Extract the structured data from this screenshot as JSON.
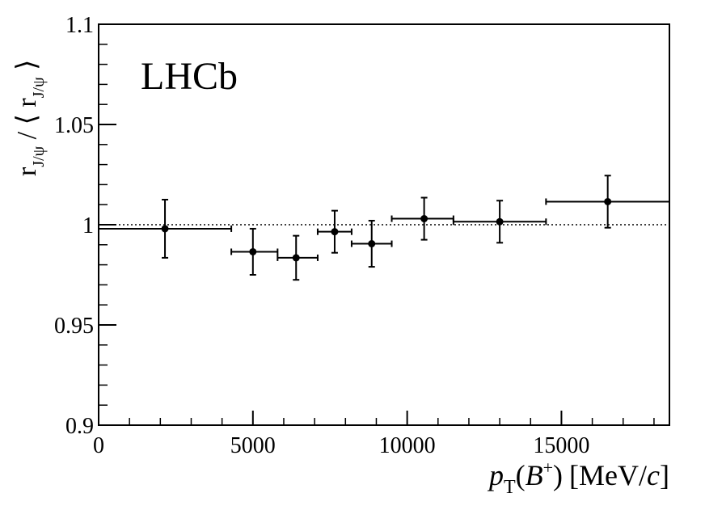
{
  "chart_data": {
    "type": "scatter",
    "title": "",
    "experiment_label": "LHCb",
    "xlabel": {
      "p": "p",
      "sub_T": "T",
      "paren_open": "(",
      "B": "B",
      "sup_plus": "+",
      "paren_close": ")",
      "unit_prefix": "[MeV/",
      "c": "c",
      "unit_suffix": "]"
    },
    "ylabel": {
      "r1": "r",
      "sub1": "J/ψ",
      "mid": " / ⟨ r",
      "sub2": "J/ψ",
      "close": " ⟩"
    },
    "xlim": [
      0,
      18500
    ],
    "ylim": [
      0.9,
      1.1
    ],
    "xticks": [
      {
        "value": 0,
        "label": "0"
      },
      {
        "value": 5000,
        "label": "5000"
      },
      {
        "value": 10000,
        "label": "10000"
      },
      {
        "value": 15000,
        "label": "15000"
      }
    ],
    "yticks": [
      {
        "value": 0.9,
        "label": "0.9"
      },
      {
        "value": 0.95,
        "label": "0.95"
      },
      {
        "value": 1.0,
        "label": "1"
      },
      {
        "value": 1.05,
        "label": "1.05"
      },
      {
        "value": 1.1,
        "label": "1.1"
      }
    ],
    "reference_line": {
      "y": 1.0,
      "style": "dotted"
    },
    "points": [
      {
        "x": 2150,
        "xlow": 0,
        "xhigh": 4300,
        "y": 0.998,
        "yerr": 0.0145
      },
      {
        "x": 5000,
        "xlow": 4300,
        "xhigh": 5800,
        "y": 0.9865,
        "yerr": 0.0115
      },
      {
        "x": 6400,
        "xlow": 5800,
        "xhigh": 7100,
        "y": 0.9835,
        "yerr": 0.011
      },
      {
        "x": 7650,
        "xlow": 7100,
        "xhigh": 8200,
        "y": 0.9965,
        "yerr": 0.0105
      },
      {
        "x": 8850,
        "xlow": 8200,
        "xhigh": 9500,
        "y": 0.9905,
        "yerr": 0.0115
      },
      {
        "x": 10550,
        "xlow": 9500,
        "xhigh": 11500,
        "y": 1.003,
        "yerr": 0.0105
      },
      {
        "x": 13000,
        "xlow": 11500,
        "xhigh": 14500,
        "y": 1.0015,
        "yerr": 0.0105
      },
      {
        "x": 16500,
        "xlow": 14500,
        "xhigh": 18500,
        "y": 1.0115,
        "yerr": 0.013
      }
    ],
    "grid": false,
    "colors": {
      "markers": "#000000",
      "axes": "#000000",
      "background": "#ffffff"
    }
  }
}
